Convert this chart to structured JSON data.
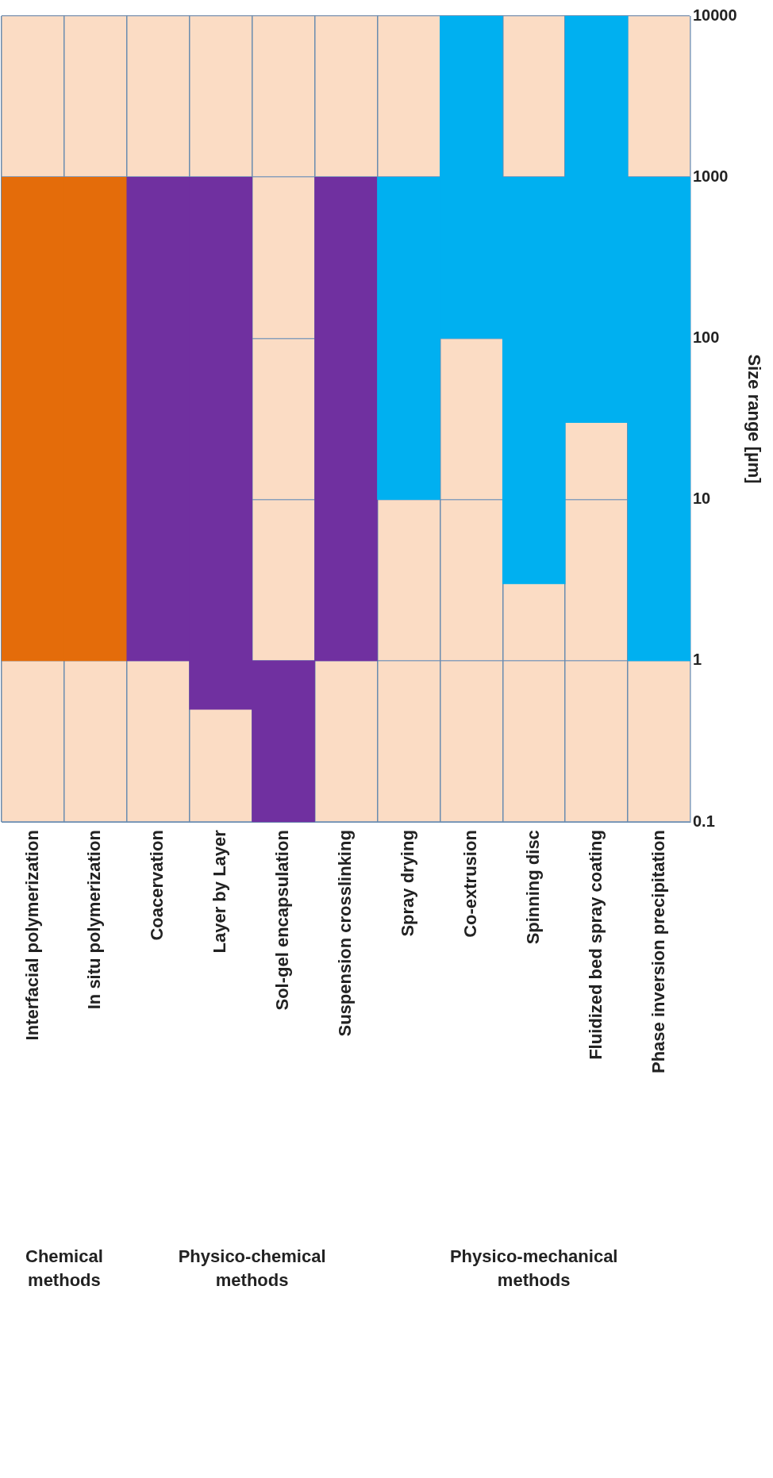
{
  "chart_data": {
    "type": "bar",
    "log": true,
    "ylabel": "Size range [µm]",
    "categories": [
      "Interfacial polymerization",
      "In situ polymerization",
      "Coacervation",
      "Layer by Layer",
      "Sol-gel encapsulation",
      "Suspension crosslinking",
      "Spray drying",
      "Co-extrusion",
      "Spinning disc",
      "Fluidized bed spray coating",
      "Phase inversion precipitation"
    ],
    "base": [
      1,
      1,
      1,
      0.5,
      0.1,
      1,
      10,
      100,
      3,
      30,
      1
    ],
    "values": [
      999,
      999,
      999,
      999.5,
      0.9,
      999,
      990,
      9900,
      997,
      9970,
      999
    ],
    "colors": [
      "#e46c0a",
      "#e46c0a",
      "#7030a0",
      "#7030a0",
      "#7030a0",
      "#7030a0",
      "#00b0f0",
      "#00b0f0",
      "#00b0f0",
      "#00b0f0",
      "#00b0f0"
    ],
    "ylim": [
      0.1,
      10000
    ],
    "yticks": [
      0.1,
      1,
      10,
      100,
      1000,
      10000
    ],
    "grid": true,
    "annotations": [
      "Chemical methods",
      "Physico-chemical methods",
      "Physico-mechanical methods"
    ]
  }
}
